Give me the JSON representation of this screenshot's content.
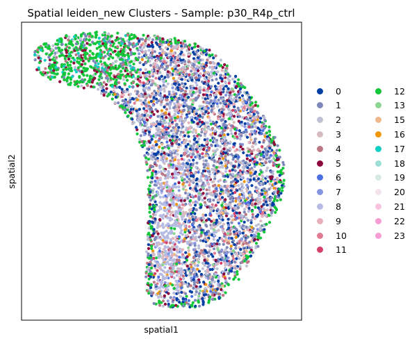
{
  "chart_data": {
    "type": "scatter",
    "title": "Spatial leiden_new Clusters - Sample: p30_R4p_ctrl",
    "xlabel": "spatial1",
    "ylabel": "spatial2",
    "grid": false,
    "ticks_shown": false,
    "legend_placement": "right, outside plot, 2 columns",
    "legend": [
      {
        "label": "0",
        "color": "#023fa5"
      },
      {
        "label": "1",
        "color": "#7d87b9"
      },
      {
        "label": "2",
        "color": "#bec1d4"
      },
      {
        "label": "3",
        "color": "#d6bcc0"
      },
      {
        "label": "4",
        "color": "#bb7784"
      },
      {
        "label": "5",
        "color": "#8e063b"
      },
      {
        "label": "6",
        "color": "#4a6fe3"
      },
      {
        "label": "7",
        "color": "#8595e1"
      },
      {
        "label": "8",
        "color": "#b5bbe3"
      },
      {
        "label": "9",
        "color": "#e6afb9"
      },
      {
        "label": "10",
        "color": "#e07b91"
      },
      {
        "label": "11",
        "color": "#d33f6a"
      },
      {
        "label": "12",
        "color": "#11c638"
      },
      {
        "label": "13",
        "color": "#8dd593"
      },
      {
        "label": "15",
        "color": "#f0b98d"
      },
      {
        "label": "16",
        "color": "#ef9708"
      },
      {
        "label": "17",
        "color": "#0fcfc0"
      },
      {
        "label": "18",
        "color": "#9cded6"
      },
      {
        "label": "19",
        "color": "#d5eae7"
      },
      {
        "label": "20",
        "color": "#f3e1eb"
      },
      {
        "label": "21",
        "color": "#f6c4e1"
      },
      {
        "label": "22",
        "color": "#f79cd4"
      },
      {
        "label": "23",
        "color": "#f79cd4"
      }
    ]
  }
}
